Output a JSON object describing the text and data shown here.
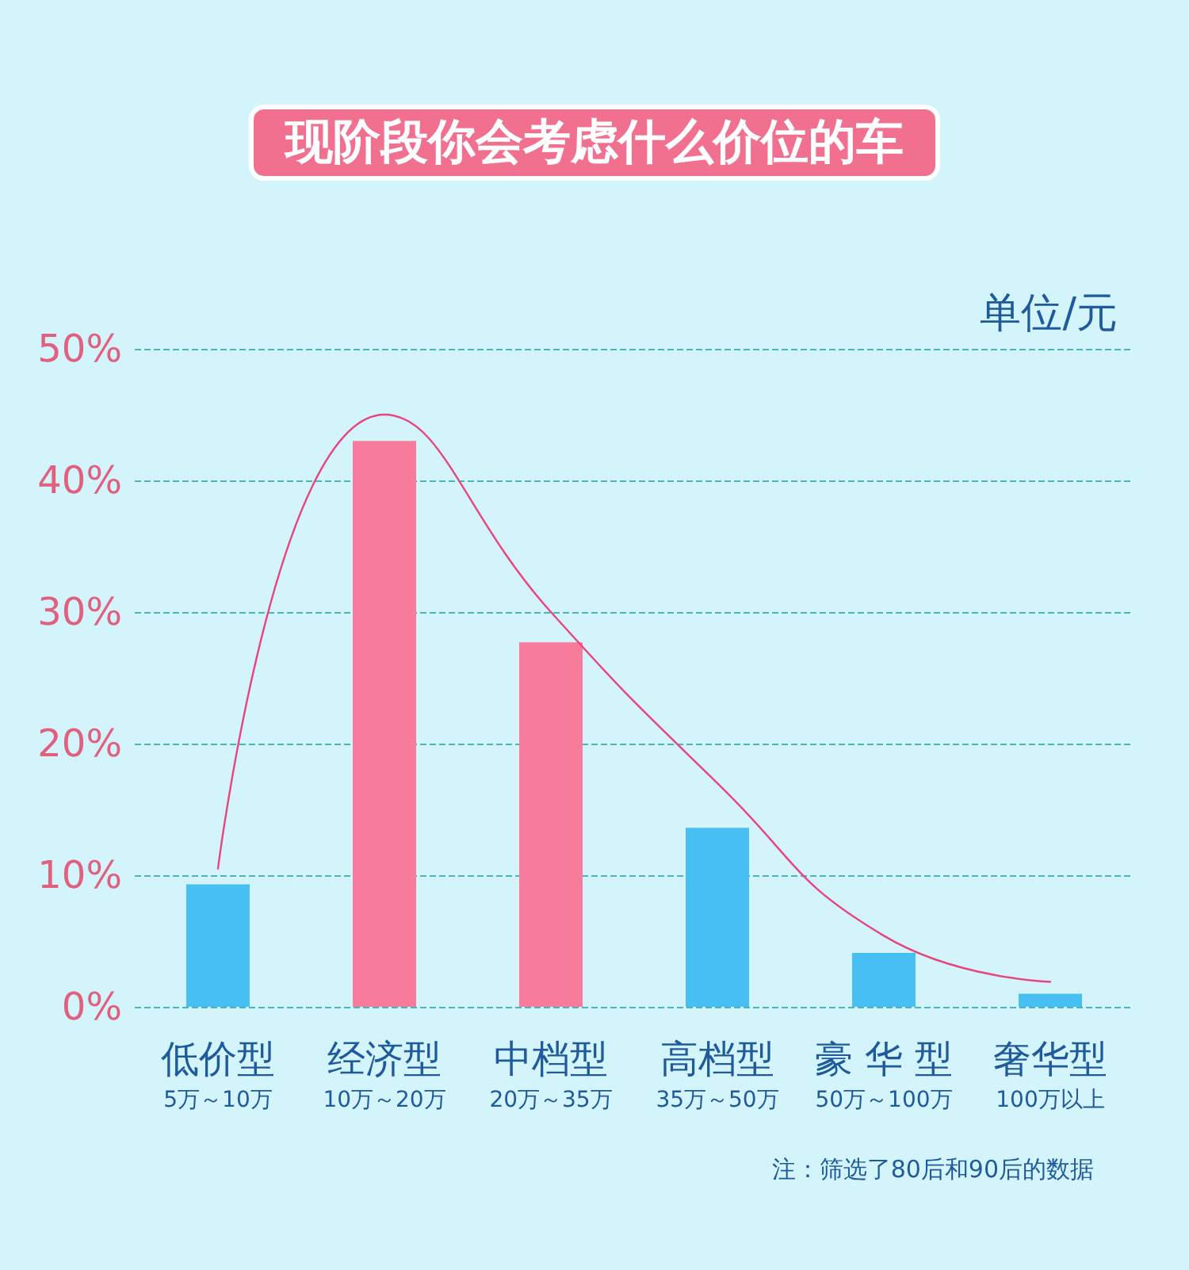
{
  "chart_data": {
    "type": "bar",
    "title": "现阶段你会考虑什么价位的车",
    "categories": [
      "低价型\n5万～10万",
      "经济型\n10万～20万",
      "中档型\n20万～35万",
      "高档型\n35万～50万",
      "豪 华 型\n50万～100万",
      "奢华型\n100万以上"
    ],
    "series": [
      {
        "values": [
          9.3,
          43,
          27.7,
          13.6,
          4.1,
          1
        ],
        "colors": [
          "#48bff2",
          "#f77b9b",
          "#f77b9b",
          "#48bff2",
          "#48bff2",
          "#48bff2"
        ]
      },
      {
        "type": "line",
        "color": "#e8457e",
        "values": [
          10.5,
          45,
          30,
          17,
          5.4,
          1.9
        ],
        "marker": "none",
        "line_style": "solid"
      }
    ],
    "ylim": [
      0,
      50
    ],
    "yticks": [
      {
        "value": 0,
        "label": "0%"
      },
      {
        "value": 10,
        "label": "10%"
      },
      {
        "value": 20,
        "label": "20%"
      },
      {
        "value": 30,
        "label": "30%"
      },
      {
        "value": 40,
        "label": "40%"
      },
      {
        "value": 50,
        "label": "50%"
      }
    ],
    "grid": "y",
    "annotations": [
      "单位/元",
      "注：筛选了80后和90后的数据"
    ]
  }
}
